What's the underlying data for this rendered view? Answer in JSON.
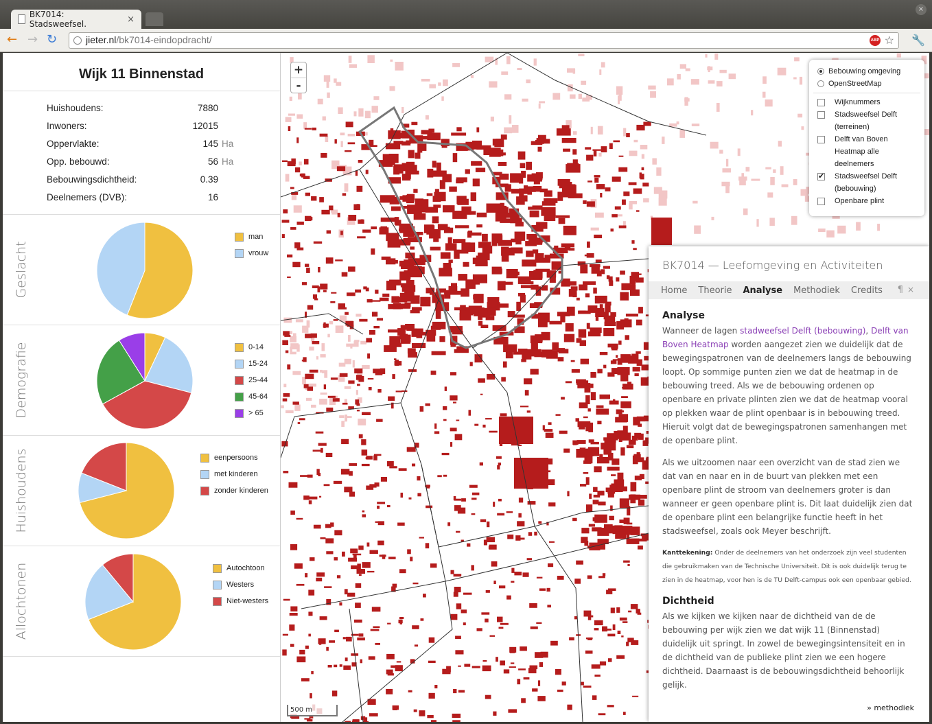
{
  "browser": {
    "tab_title": "BK7014: Stadsweefsel.",
    "tab_close": "×",
    "url_host": "jieter.nl",
    "url_path": "/bk7014-eindopdracht/",
    "abp_label": "ABP",
    "window_close": "×"
  },
  "sidebar": {
    "title": "Wijk 11 Binnenstad",
    "stats": [
      {
        "label": "Huishoudens:",
        "value": "7880",
        "unit": ""
      },
      {
        "label": "Inwoners:",
        "value": "12015",
        "unit": ""
      },
      {
        "label": "Oppervlakte:",
        "value": "145",
        "unit": "Ha"
      },
      {
        "label": "Opp. bebouwd:",
        "value": "56",
        "unit": "Ha"
      },
      {
        "label": "Bebouwingsdichtheid:",
        "value": "0.39",
        "unit": ""
      },
      {
        "label": "Deelnemers (DVB):",
        "value": "16",
        "unit": ""
      }
    ],
    "charts": [
      {
        "title": "Geslacht",
        "legend": [
          {
            "label": "man",
            "color": "#f0c040"
          },
          {
            "label": "vrouw",
            "color": "#b3d5f5"
          }
        ]
      },
      {
        "title": "Demografie",
        "legend": [
          {
            "label": "0-14",
            "color": "#f0c040"
          },
          {
            "label": "15-24",
            "color": "#b3d5f5"
          },
          {
            "label": "25-44",
            "color": "#d44848"
          },
          {
            "label": "45-64",
            "color": "#44a048"
          },
          {
            "label": "> 65",
            "color": "#9a3ee8"
          }
        ]
      },
      {
        "title": "Huishoudens",
        "legend": [
          {
            "label": "eenpersoons",
            "color": "#f0c040"
          },
          {
            "label": "met kinderen",
            "color": "#b3d5f5"
          },
          {
            "label": "zonder kinderen",
            "color": "#d44848"
          }
        ]
      },
      {
        "title": "Allochtonen",
        "legend": [
          {
            "label": "Autochtoon",
            "color": "#f0c040"
          },
          {
            "label": "Westers",
            "color": "#b3d5f5"
          },
          {
            "label": "Niet-westers",
            "color": "#d44848"
          }
        ]
      }
    ]
  },
  "chart_data": [
    {
      "type": "pie",
      "categories": [
        "man",
        "vrouw"
      ],
      "values": [
        0.56,
        0.44
      ]
    },
    {
      "type": "pie",
      "categories": [
        "0-14",
        "15-24",
        "25-44",
        "45-64",
        "> 65"
      ],
      "values": [
        0.07,
        0.22,
        0.38,
        0.24,
        0.09
      ]
    },
    {
      "type": "pie",
      "categories": [
        "eenpersoons",
        "met kinderen",
        "zonder kinderen"
      ],
      "values": [
        0.71,
        0.1,
        0.19
      ]
    },
    {
      "type": "pie",
      "categories": [
        "Autochtoon",
        "Westers",
        "Niet-westers"
      ],
      "values": [
        0.69,
        0.2,
        0.11
      ]
    }
  ],
  "map": {
    "zoom_in": "+",
    "zoom_out": "-",
    "scale_label": "500 m",
    "base_layers": [
      {
        "label": "Bebouwing omgeving",
        "selected": true
      },
      {
        "label": "OpenStreetMap",
        "selected": false
      }
    ],
    "overlays": [
      {
        "label": "Wijknummers",
        "checked": false
      },
      {
        "label": "Stadsweefsel Delft (terreinen)",
        "checked": false
      },
      {
        "label": "Delft van Boven Heatmap alle deelnemers",
        "checked": false
      },
      {
        "label": "Stadsweefsel Delft (bebouwing)",
        "checked": true
      },
      {
        "label": "Openbare plint",
        "checked": false
      }
    ],
    "check_mark": "✔"
  },
  "info": {
    "title": "BK7014 — Leefomgeving en Activiteiten",
    "tabs": [
      "Home",
      "Theorie",
      "Analyse",
      "Methodiek",
      "Credits"
    ],
    "active_tab": "Analyse",
    "pilcrow": "¶",
    "close": "×",
    "h_analyse": "Analyse",
    "p1_before": "Wanneer de lagen ",
    "p1_link1": "stadweefsel Delft (bebouwing)",
    "p1_sep": ", ",
    "p1_link2": "Delft van Boven Heatmap",
    "p1_after": " worden aangezet zien we duidelijk dat de bewegingspatronen van de deelnemers langs de bebouwing loopt. Op sommige punten zien we dat de heatmap in de bebouwing treed. Als we de bebouwing ordenen op openbare en private plinten zien we dat de heatmap vooral op plekken waar de plint openbaar is in bebouwing treed. Hieruit volgt dat de bewegingspatronen samenhangen met de openbare plint.",
    "p2": "Als we uitzoomen naar een overzicht van de stad zien we dat van en naar en in de buurt van plekken met een openbare plint de stroom van deelnemers groter is dan wanneer er geen openbare plint is. Dit laat duidelijk zien dat de openbare plint een belangrijke functie heeft in het stadsweefsel, zoals ook Meyer beschrijft.",
    "note_label": "Kanttekening:",
    "note_text": " Onder de deelnemers van het onderzoek zijn veel studenten die gebruikmaken van de Technische Universiteit. Dit is ook duidelijk terug te zien in de heatmap, voor hen is de TU Delft-campus ook een openbaar gebied.",
    "h_dichtheid": "Dichtheid",
    "p3": "Als we kijken we kijken naar de dichtheid van de de bebouwing per wijk zien we dat wijk 11 (Binnenstad) duidelijk uit springt. In zowel de bewegingsintensiteit en in de dichtheid van de publieke plint zien we een hogere dichtheid. Daarnaast is de bebouwingsdichtheid behoorlijk gelijk.",
    "more_link": "» methodiek"
  }
}
